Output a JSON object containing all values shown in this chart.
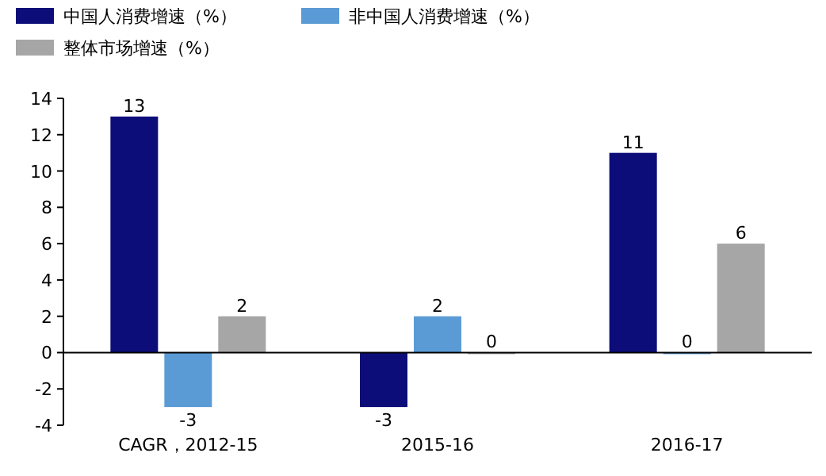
{
  "chart_data": {
    "type": "bar",
    "categories": [
      "CAGR，2012-15",
      "2015-16",
      "2016-17"
    ],
    "series": [
      {
        "name": "中国人消费增速（%）",
        "color": "#0d0d7a",
        "values": [
          13,
          -3,
          11
        ]
      },
      {
        "name": "非中国人消费增速（%）",
        "color": "#5b9bd5",
        "values": [
          -3,
          2,
          0
        ]
      },
      {
        "name": "整体市场增速（%）",
        "color": "#a6a6a6",
        "values": [
          2,
          0,
          6
        ]
      }
    ],
    "ylim": [
      -4,
      14
    ],
    "yticks": [
      -4,
      -2,
      0,
      2,
      4,
      6,
      8,
      10,
      12,
      14
    ],
    "data_labels": true,
    "legend": "top left"
  }
}
